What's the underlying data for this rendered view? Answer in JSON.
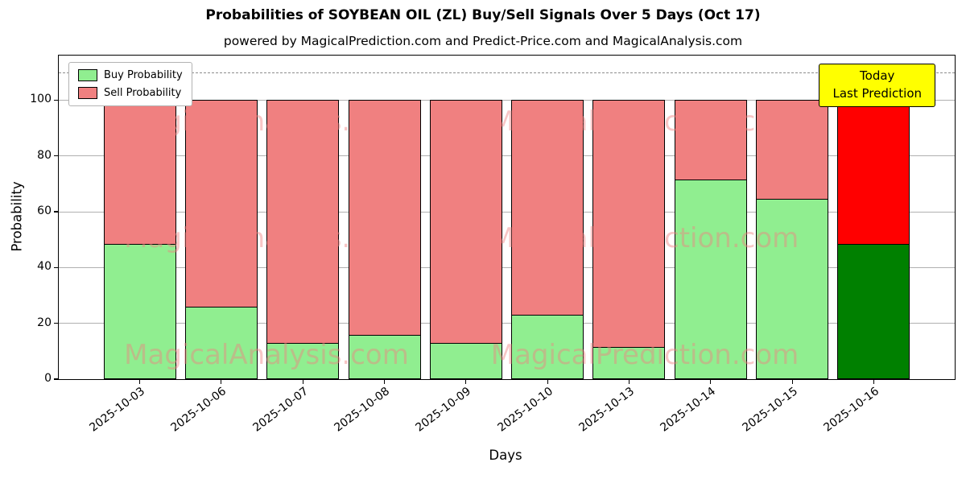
{
  "figure": {
    "title": "Probabilities of SOYBEAN OIL (ZL) Buy/Sell Signals Over 5 Days (Oct 17)",
    "subtitle": "powered by MagicalPrediction.com and Predict-Price.com and MagicalAnalysis.com"
  },
  "legend": {
    "items": [
      {
        "label": "Buy Probability",
        "color": "#90EE90"
      },
      {
        "label": "Sell Probability",
        "color": "#F08080"
      }
    ]
  },
  "annotation": {
    "line1": "Today",
    "line2": "Last Prediction",
    "bg_color": "#FFFF00"
  },
  "watermarks": [
    "MagicalAnalysis.com",
    "MagicalPrediction.com"
  ],
  "chart_data": {
    "type": "bar",
    "stacked": true,
    "title": "Probabilities of SOYBEAN OIL (ZL) Buy/Sell Signals Over 5 Days (Oct 17)",
    "xlabel": "Days",
    "ylabel": "Probability",
    "categories": [
      "2025-10-03",
      "2025-10-06",
      "2025-10-07",
      "2025-10-08",
      "2025-10-09",
      "2025-10-10",
      "2025-10-13",
      "2025-10-14",
      "2025-10-15",
      "2025-10-16"
    ],
    "series": [
      {
        "name": "Buy Probability",
        "color": "#90EE90",
        "final_bar_color": "#008000",
        "values": [
          48.5,
          26,
          13,
          16,
          13,
          23,
          11.5,
          71.5,
          64.5,
          48.5
        ]
      },
      {
        "name": "Sell Probability",
        "color": "#F08080",
        "final_bar_color": "#FF0000",
        "values": [
          51.5,
          74,
          87,
          84,
          87,
          77,
          88.5,
          28.5,
          35.5,
          51.5
        ]
      }
    ],
    "ylim": [
      0,
      116
    ],
    "yticks": [
      0,
      20,
      40,
      60,
      80,
      100
    ],
    "dashed_line_y": 110,
    "grid": true,
    "legend_position": "upper left"
  }
}
